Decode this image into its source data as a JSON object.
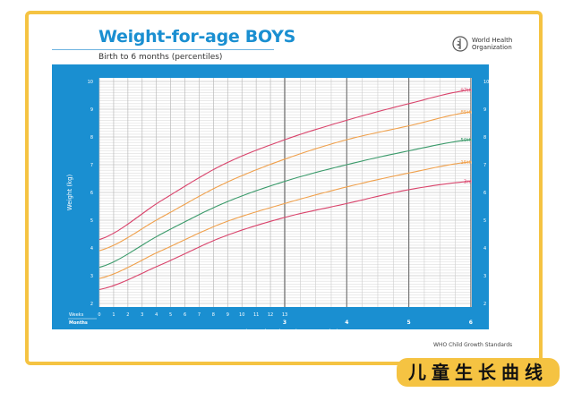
{
  "header": {
    "title": "Weight-for-age BOYS",
    "subtitle": "Birth to 6 months (percentiles)",
    "org_line1": "World Health",
    "org_line2": "Organization",
    "logo_icon": "who-emblem-icon"
  },
  "footer": {
    "source": "WHO Child Growth Standards",
    "caption": "儿童生长曲线"
  },
  "colors": {
    "frame": "#f5c342",
    "panel": "#1a8fd1",
    "p97": "#d9436b",
    "p85": "#f0a04b",
    "p50": "#3a9a6a",
    "p15": "#f0a04b",
    "p3": "#d9436b"
  },
  "chart_data": {
    "type": "line",
    "title": "Weight-for-age BOYS",
    "subtitle": "Birth to 6 months (percentiles)",
    "ylabel": "Weight (kg)",
    "xlabel": "Age (completed weeks or months)",
    "ylim": [
      2,
      10
    ],
    "yticks": [
      "2",
      "3",
      "4",
      "5",
      "6",
      "7",
      "8",
      "9",
      "10"
    ],
    "weeks_label": "Weeks",
    "months_label": "Months",
    "week_ticks": [
      "0",
      "1",
      "2",
      "3",
      "4",
      "5",
      "6",
      "7",
      "8",
      "9",
      "10",
      "11",
      "12",
      "13"
    ],
    "month_ticks": [
      "3",
      "4",
      "5",
      "6"
    ],
    "grid": true,
    "x_months": [
      0,
      1,
      2,
      3,
      4,
      5,
      6
    ],
    "series": [
      {
        "name": "97th",
        "values": [
          4.3,
          5.7,
          7.0,
          7.9,
          8.6,
          9.2,
          9.7
        ]
      },
      {
        "name": "85th",
        "values": [
          3.9,
          5.1,
          6.3,
          7.2,
          7.9,
          8.4,
          8.9
        ]
      },
      {
        "name": "50th",
        "values": [
          3.3,
          4.5,
          5.6,
          6.4,
          7.0,
          7.5,
          7.9
        ]
      },
      {
        "name": "15th",
        "values": [
          2.9,
          3.9,
          4.9,
          5.6,
          6.2,
          6.7,
          7.1
        ]
      },
      {
        "name": "3rd",
        "values": [
          2.5,
          3.4,
          4.4,
          5.1,
          5.6,
          6.1,
          6.4
        ]
      }
    ]
  }
}
